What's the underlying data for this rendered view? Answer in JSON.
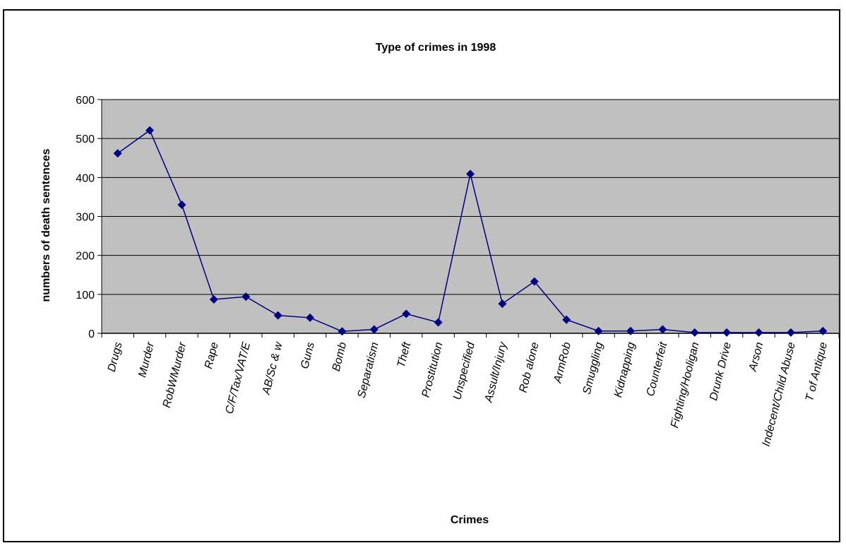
{
  "chart_data": {
    "type": "line",
    "title": "Type of crimes in 1998",
    "xlabel": "Crimes",
    "ylabel": "numbers of death sentences",
    "ylim": [
      0,
      600
    ],
    "yticks": [
      "0",
      "100",
      "200",
      "300",
      "400",
      "500",
      "600"
    ],
    "grid": true,
    "legend": "none",
    "categories": [
      "Drugs",
      "Murder",
      "RobWMurder",
      "Rape",
      "C/F/Tax/VAT/E",
      "AB/Sc & w",
      "Guns",
      "Bomb",
      "Separatism",
      "Theft",
      "Prostitution",
      "Unspecified",
      "Assult/Injury",
      "Rob alone",
      "ArmRob",
      "Smuggling",
      "Kidnapping",
      "Counterfeit",
      "Fighting/Hooligan",
      "Drunk Drive",
      "Arson",
      "Indecent/Child Abuse",
      "T of Antique"
    ],
    "series": [
      {
        "values": [
          462,
          521,
          330,
          87,
          94,
          46,
          40,
          5,
          10,
          50,
          28,
          409,
          76,
          133,
          35,
          6,
          6,
          10,
          2,
          2,
          2,
          2,
          6
        ]
      }
    ],
    "colors": {
      "line": "#000080",
      "plot_background": "#c0c0c0",
      "grid": "#000000"
    }
  }
}
